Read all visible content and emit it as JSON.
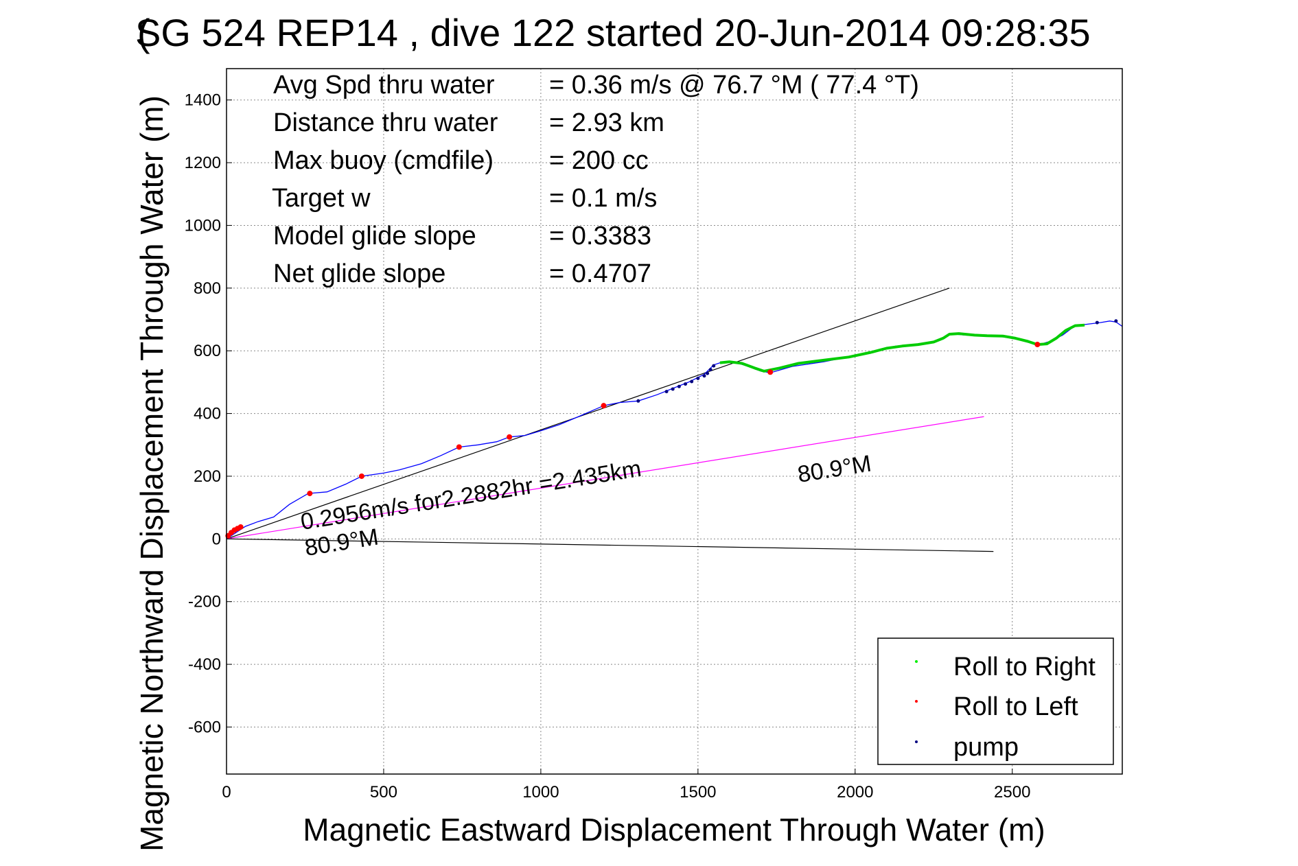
{
  "chart_data": {
    "type": "line",
    "title": "SG 524   REP14  , dive 122 started 20-Jun-2014 09:28:35",
    "title_overlay": "(",
    "xlabel": "Magnetic Eastward Displacement Through Water (m)",
    "ylabel": "Magnetic Northward Displacement Through Water (m)",
    "xlim": [
      0,
      2850
    ],
    "ylim": [
      -750,
      1500
    ],
    "xticks": [
      0,
      500,
      1000,
      1500,
      2000,
      2500
    ],
    "yticks": [
      -600,
      -400,
      -200,
      0,
      200,
      400,
      600,
      800,
      1000,
      1200,
      1400
    ],
    "grid": true,
    "legend_position": "bottom-right",
    "legend": [
      {
        "label": "Roll to Right",
        "color": "#00ee00"
      },
      {
        "label": "Roll to Left",
        "color": "#ff0000"
      },
      {
        "label": "pump",
        "color": "#000080"
      }
    ],
    "stats": [
      {
        "label": "Avg Spd thru water",
        "value": "=  0.36 m/s @  76.7 °M ( 77.4 °T)"
      },
      {
        "label": "Distance thru water",
        "value": "=  2.93 km"
      },
      {
        "label": "Max buoy (cmdfile)",
        "value": "= 200 cc"
      },
      {
        "label": "Target w",
        "value": "= 0.1 m/s"
      },
      {
        "label": "Model glide slope",
        "value": "= 0.3383"
      },
      {
        "label": "Net glide slope",
        "value": "= 0.4707"
      }
    ],
    "annotations": {
      "current_speed": "0.2956m/s for2.2882hr =2.435km",
      "current_heading": "80.9°M",
      "current_heading_end": "80.9°M"
    },
    "series": [
      {
        "kind": "track",
        "color": "#0000ff",
        "x": [
          0,
          30,
          60,
          100,
          150,
          200,
          260,
          320,
          380,
          430,
          500,
          550,
          620,
          680,
          740,
          800,
          860,
          900,
          950,
          1000,
          1060,
          1120,
          1200,
          1250,
          1310,
          1370,
          1420,
          1470,
          1520,
          1550,
          1580,
          1620,
          1660,
          1700,
          1730,
          1800,
          1900,
          2000,
          2050,
          2130,
          2200,
          2260,
          2300,
          2350,
          2400,
          2450,
          2500,
          2540,
          2580,
          2620,
          2660,
          2700,
          2740,
          2780,
          2810,
          2830,
          2850
        ],
        "y": [
          0,
          20,
          40,
          55,
          70,
          110,
          145,
          150,
          175,
          200,
          210,
          220,
          240,
          265,
          293,
          300,
          310,
          325,
          330,
          345,
          365,
          390,
          425,
          435,
          440,
          460,
          480,
          500,
          525,
          555,
          565,
          563,
          550,
          535,
          530,
          550,
          565,
          585,
          595,
          615,
          620,
          630,
          655,
          650,
          648,
          647,
          640,
          630,
          618,
          630,
          650,
          680,
          685,
          690,
          695,
          692,
          678
        ]
      },
      {
        "kind": "roll_right",
        "color": "#00cc00",
        "x": [
          1570,
          1600,
          1640,
          1680,
          1710,
          1760,
          1820,
          1900,
          1980,
          2050,
          2100,
          2150,
          2200,
          2250,
          2280,
          2300,
          2330,
          2380,
          2420,
          2470,
          2510,
          2550,
          2580,
          2610,
          2640,
          2670,
          2700,
          2730
        ],
        "y": [
          562,
          565,
          560,
          545,
          535,
          545,
          560,
          570,
          580,
          595,
          608,
          615,
          620,
          628,
          640,
          653,
          655,
          650,
          648,
          647,
          640,
          630,
          620,
          622,
          640,
          665,
          680,
          682
        ]
      },
      {
        "kind": "roll_left",
        "color": "#ff0000",
        "x": [
          5,
          15,
          25,
          35,
          45,
          265,
          430,
          740,
          900,
          1200,
          1730,
          2580
        ],
        "y": [
          10,
          20,
          28,
          33,
          38,
          145,
          200,
          293,
          325,
          425,
          532,
          620
        ]
      },
      {
        "kind": "pump",
        "color": "#000080",
        "x": [
          1310,
          1400,
          1420,
          1440,
          1460,
          1480,
          1500,
          1520,
          1530,
          1540,
          1550,
          2770,
          2830
        ],
        "y": [
          440,
          470,
          478,
          486,
          494,
          502,
          512,
          520,
          528,
          540,
          552,
          690,
          695
        ]
      },
      {
        "kind": "glide_line",
        "color": "#000000",
        "x": [
          0,
          2300
        ],
        "y": [
          0,
          800
        ]
      },
      {
        "kind": "heading_line",
        "color": "#000000",
        "x": [
          0,
          2440
        ],
        "y": [
          0,
          -40
        ]
      },
      {
        "kind": "current_line",
        "color": "#ff00ff",
        "x": [
          0,
          2410
        ],
        "y": [
          0,
          390
        ]
      }
    ]
  }
}
